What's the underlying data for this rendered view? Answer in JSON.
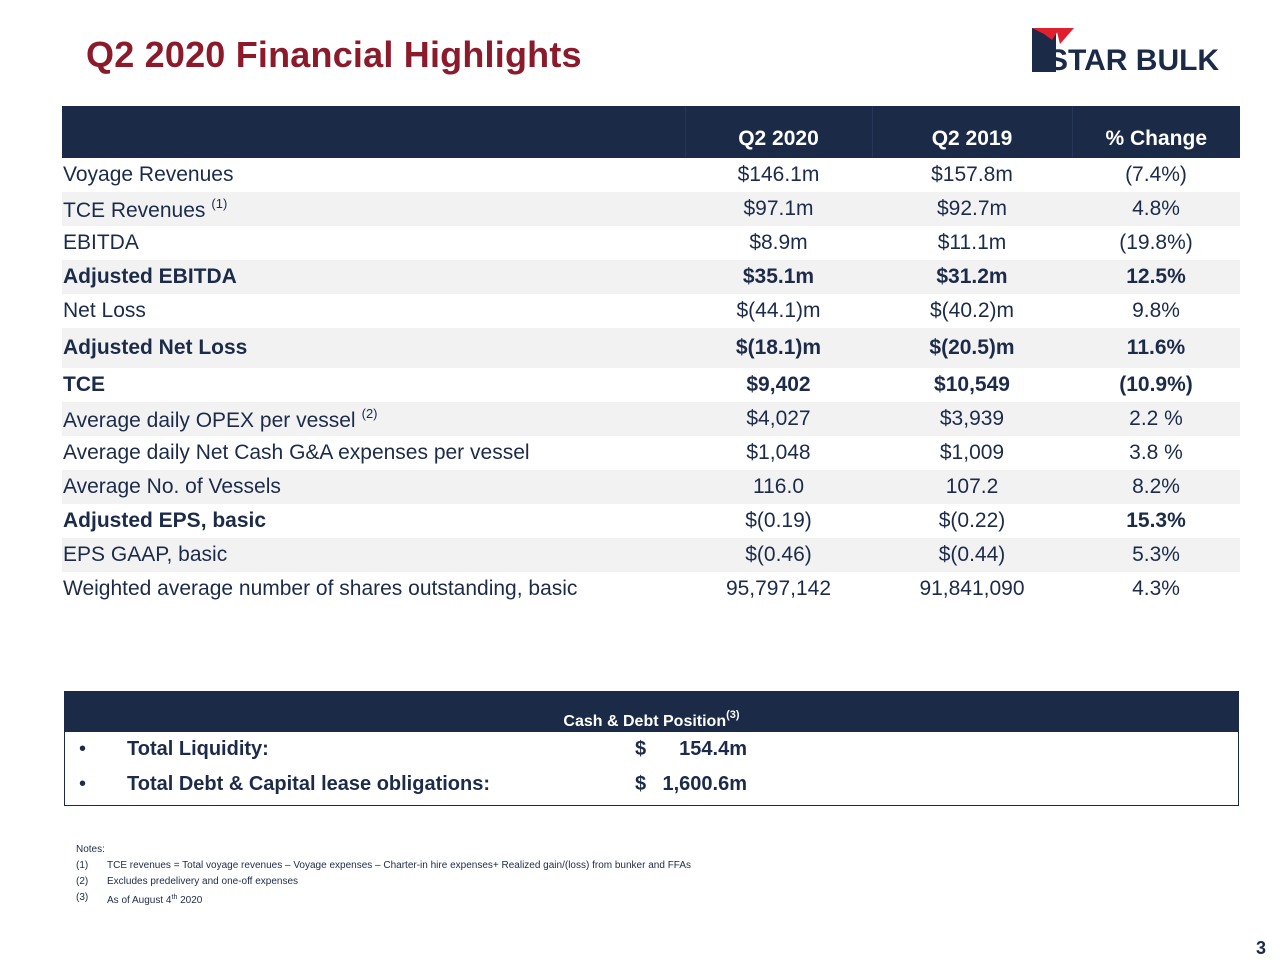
{
  "slide": {
    "title": "Q2 2020 Financial Highlights",
    "page_number": "3"
  },
  "logo": {
    "text": "STAR BULK",
    "colors": {
      "red": "#e0202e",
      "navy": "#1b2a47"
    }
  },
  "table": {
    "headers": [
      "",
      "Q2 2020",
      "Q2 2019",
      "% Change"
    ],
    "rows": [
      {
        "label": "Voyage Revenues",
        "footnote": "",
        "q2_2020": "$146.1m",
        "q2_2019": "$157.8m",
        "change": "(7.4%)"
      },
      {
        "label": "TCE Revenues",
        "footnote": "(1)",
        "q2_2020": "$97.1m",
        "q2_2019": "$92.7m",
        "change": "4.8%"
      },
      {
        "label": "EBITDA",
        "footnote": "",
        "q2_2020": "$8.9m",
        "q2_2019": "$11.1m",
        "change": "(19.8%)"
      },
      {
        "label": "Adjusted EBITDA",
        "footnote": "",
        "q2_2020": "$35.1m",
        "q2_2019": "$31.2m",
        "change": "12.5%"
      },
      {
        "label": "Net Loss",
        "footnote": "",
        "q2_2020": "$(44.1)m",
        "q2_2019": "$(40.2)m",
        "change": "9.8%"
      },
      {
        "label": "Adjusted Net Loss",
        "footnote": "",
        "q2_2020": "$(18.1)m",
        "q2_2019": "$(20.5)m",
        "change": "11.6%"
      },
      {
        "label": "TCE",
        "footnote": "",
        "q2_2020": "$9,402",
        "q2_2019": "$10,549",
        "change": "(10.9%)"
      },
      {
        "label": "Average daily OPEX per vessel",
        "footnote": "(2)",
        "q2_2020": "$4,027",
        "q2_2019": "$3,939",
        "change": "2.2 %"
      },
      {
        "label": "Average daily Net Cash G&A expenses per vessel",
        "footnote": "",
        "q2_2020": "$1,048",
        "q2_2019": "$1,009",
        "change": "3.8 %"
      },
      {
        "label": "Average No. of Vessels",
        "footnote": "",
        "q2_2020": "116.0",
        "q2_2019": "107.2",
        "change": "8.2%"
      },
      {
        "label": "Adjusted EPS, basic",
        "footnote": "",
        "q2_2020": "$(0.19)",
        "q2_2019": "$(0.22)",
        "change": "15.3%"
      },
      {
        "label": "EPS GAAP, basic",
        "footnote": "",
        "q2_2020": "$(0.46)",
        "q2_2019": "$(0.44)",
        "change": "5.3%"
      },
      {
        "label": "Weighted average number of shares outstanding, basic",
        "footnote": "",
        "q2_2020": "95,797,142",
        "q2_2019": "91,841,090",
        "change": "4.3%"
      }
    ]
  },
  "cash_debt": {
    "title": "Cash & Debt Position",
    "footnote": "(3)",
    "items": [
      {
        "bullet": "•",
        "label": "Total Liquidity:",
        "currency": "$",
        "value": "154.4m"
      },
      {
        "bullet": "•",
        "label": "Total Debt & Capital lease obligations:",
        "currency": "$",
        "value": "1,600.6m"
      }
    ]
  },
  "notes": {
    "heading": "Notes:",
    "items": [
      {
        "num": "(1)",
        "text": "TCE revenues = Total voyage revenues – Voyage expenses – Charter-in hire expenses+ Realized gain/(loss) from bunker and FFAs"
      },
      {
        "num": "(2)",
        "text": "Excludes predelivery and one-off expenses"
      },
      {
        "num": "(3)",
        "text": "As of August 4",
        "sup": "th",
        "text_after": " 2020"
      }
    ]
  },
  "colors": {
    "title": "#8b1a2b",
    "header_bg": "#1b2a47",
    "text": "#1c2b4a",
    "negative": "#e8141f",
    "row_shade": "#f2f2f2"
  }
}
